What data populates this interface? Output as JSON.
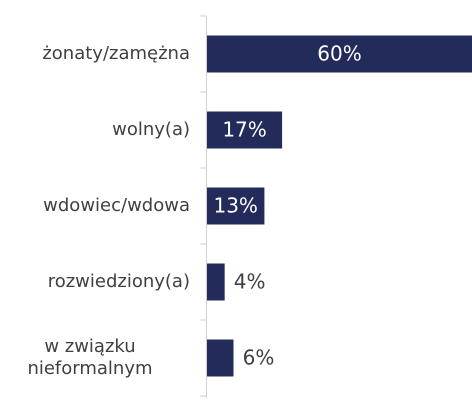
{
  "chart_data": {
    "type": "barh",
    "categories": [
      "żonaty/zamężna",
      "wolny(a)",
      "wdowiec/wdowa",
      "rozwiedziony(a)",
      "w związku nieformalnym"
    ],
    "values": [
      60,
      17,
      13,
      4,
      6
    ],
    "value_labels": [
      "60%",
      "17%",
      "13%",
      "4%",
      "6%"
    ],
    "color": "#232b5b",
    "xlim": [
      0,
      60
    ]
  }
}
